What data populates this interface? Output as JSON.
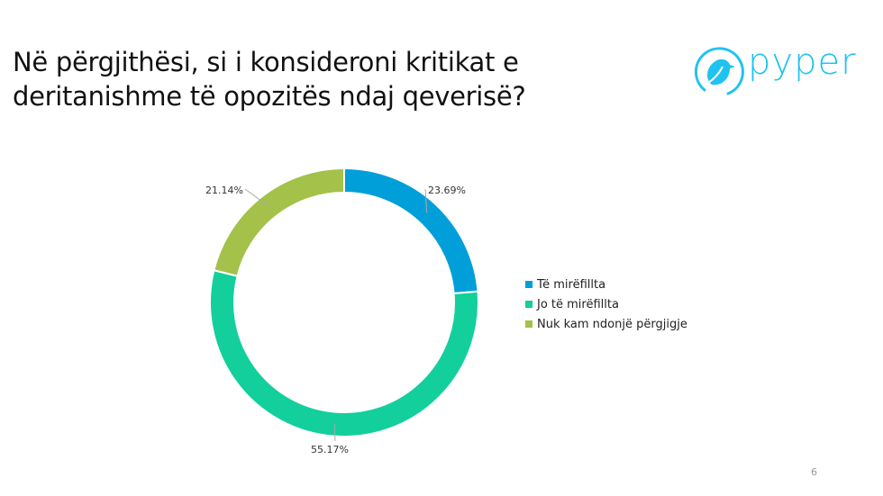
{
  "slide": {
    "title": "Në përgjithësi, si i konsideroni kritikat e deritanishme të opozitës ndaj qeverisë?",
    "title_line1": "Në përgjithësi, si i konsideroni kritikat e",
    "title_line2": "deritanishme të opozitës ndaj qeverisë?",
    "page_number": "6",
    "logo": {
      "text": "pyper",
      "icon": "bird-in-circle-icon",
      "color": "#1ec3f0"
    }
  },
  "chart_data": {
    "type": "pie",
    "subtype": "donut",
    "title": "",
    "categories": [
      "Të mirëfillta",
      "Jo të mirëfillta",
      "Nuk kam ndonjë përgjigje"
    ],
    "values": [
      23.69,
      55.17,
      21.14
    ],
    "labels": [
      "23.69%",
      "55.17%",
      "21.14%"
    ],
    "colors": [
      "#009fd9",
      "#13cf9c",
      "#a4c14a"
    ],
    "legend_position": "right",
    "start_angle": 0,
    "direction": "clockwise"
  },
  "legend": {
    "items": [
      {
        "label": "Të mirëfillta",
        "color": "#009fd9"
      },
      {
        "label": "Jo të mirëfillta",
        "color": "#13cf9c"
      },
      {
        "label": "Nuk kam ndonjë përgjigje",
        "color": "#a4c14a"
      }
    ]
  }
}
